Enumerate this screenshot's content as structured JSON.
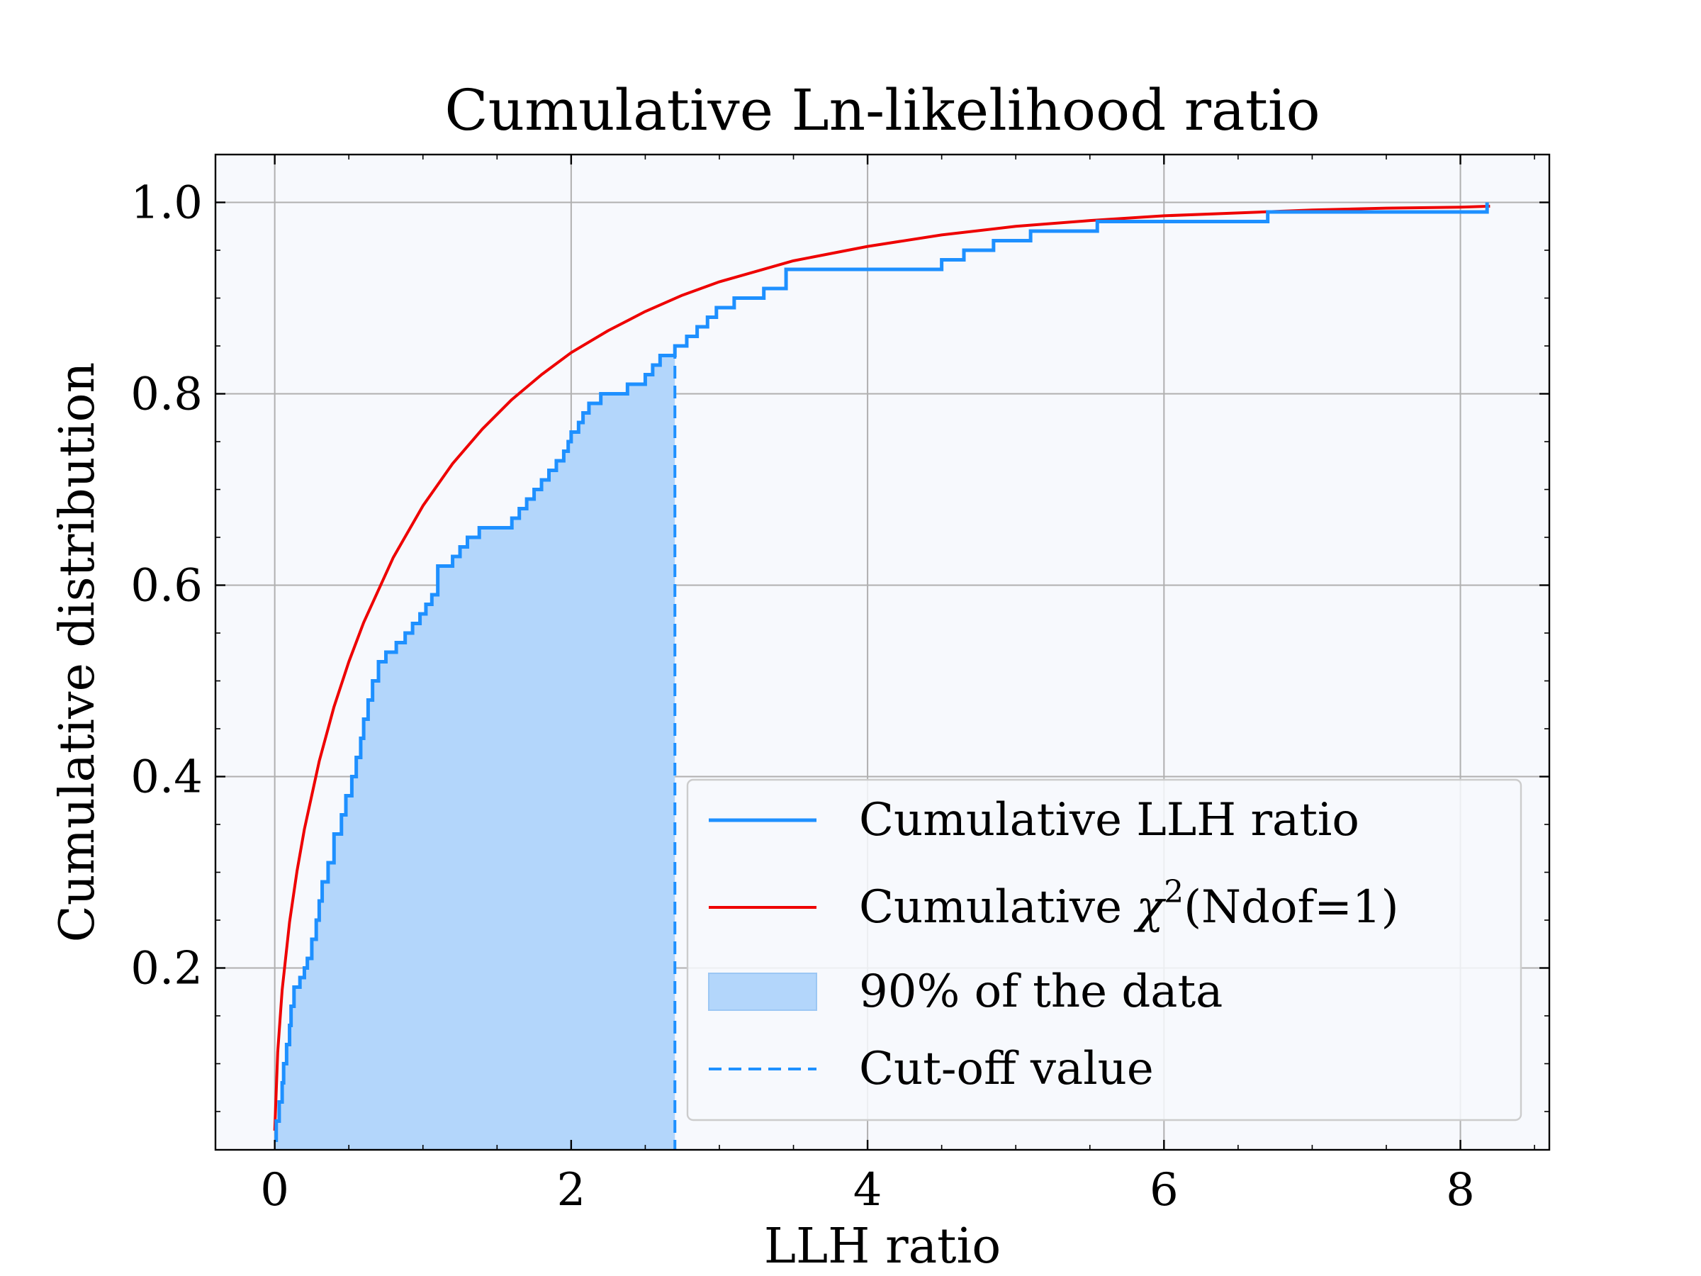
{
  "chart_data": {
    "type": "line",
    "title": "Cumulative Ln-likelihood ratio",
    "xlabel": "LLH ratio",
    "ylabel": "Cumulative distribution",
    "xlim": [
      -0.4,
      8.6
    ],
    "ylim": [
      0.01,
      1.05
    ],
    "x_ticks": [
      0,
      2,
      4,
      6,
      8
    ],
    "x_tick_labels": [
      "0",
      "2",
      "4",
      "6",
      "8"
    ],
    "y_ticks": [
      0.2,
      0.4,
      0.6,
      0.8,
      1.0
    ],
    "y_tick_labels": [
      "0.2",
      "0.4",
      "0.6",
      "0.8",
      "1.0"
    ],
    "grid": true,
    "legend_position": "lower-right",
    "cutoff_x": 2.7,
    "legend": {
      "llh": "Cumulative LLH ratio",
      "chi2_prefix": "Cumulative ",
      "chi2_symbol": "χ",
      "chi2_sup": "2",
      "chi2_suffix": "(Ndof=1)",
      "fill": "90% of the data",
      "cutoff": "Cut-off value"
    },
    "colors": {
      "llh": "#1e90ff",
      "chi2": "#ee0000",
      "fill": "#b3d6fb",
      "background": "#f7f9fd",
      "grid": "#b0b0b0"
    },
    "series": [
      {
        "name": "Cumulative LLH ratio",
        "kind": "step",
        "points": [
          [
            0.0,
            0.02
          ],
          [
            0.01,
            0.04
          ],
          [
            0.03,
            0.06
          ],
          [
            0.05,
            0.08
          ],
          [
            0.06,
            0.1
          ],
          [
            0.08,
            0.12
          ],
          [
            0.1,
            0.14
          ],
          [
            0.11,
            0.16
          ],
          [
            0.13,
            0.18
          ],
          [
            0.17,
            0.19
          ],
          [
            0.2,
            0.2
          ],
          [
            0.22,
            0.21
          ],
          [
            0.25,
            0.23
          ],
          [
            0.28,
            0.25
          ],
          [
            0.3,
            0.27
          ],
          [
            0.32,
            0.29
          ],
          [
            0.36,
            0.31
          ],
          [
            0.4,
            0.34
          ],
          [
            0.45,
            0.36
          ],
          [
            0.48,
            0.38
          ],
          [
            0.52,
            0.4
          ],
          [
            0.55,
            0.42
          ],
          [
            0.58,
            0.44
          ],
          [
            0.6,
            0.46
          ],
          [
            0.63,
            0.48
          ],
          [
            0.66,
            0.5
          ],
          [
            0.7,
            0.52
          ],
          [
            0.75,
            0.53
          ],
          [
            0.82,
            0.54
          ],
          [
            0.88,
            0.55
          ],
          [
            0.93,
            0.56
          ],
          [
            0.98,
            0.57
          ],
          [
            1.02,
            0.58
          ],
          [
            1.06,
            0.59
          ],
          [
            1.1,
            0.62
          ],
          [
            1.2,
            0.63
          ],
          [
            1.25,
            0.64
          ],
          [
            1.3,
            0.65
          ],
          [
            1.38,
            0.66
          ],
          [
            1.6,
            0.67
          ],
          [
            1.65,
            0.68
          ],
          [
            1.7,
            0.69
          ],
          [
            1.75,
            0.7
          ],
          [
            1.8,
            0.71
          ],
          [
            1.85,
            0.72
          ],
          [
            1.9,
            0.73
          ],
          [
            1.95,
            0.74
          ],
          [
            1.98,
            0.75
          ],
          [
            2.0,
            0.76
          ],
          [
            2.05,
            0.77
          ],
          [
            2.08,
            0.78
          ],
          [
            2.12,
            0.79
          ],
          [
            2.2,
            0.8
          ],
          [
            2.38,
            0.81
          ],
          [
            2.5,
            0.82
          ],
          [
            2.55,
            0.83
          ],
          [
            2.6,
            0.84
          ],
          [
            2.7,
            0.85
          ],
          [
            2.78,
            0.86
          ],
          [
            2.85,
            0.87
          ],
          [
            2.92,
            0.88
          ],
          [
            2.98,
            0.89
          ],
          [
            3.1,
            0.9
          ],
          [
            3.3,
            0.91
          ],
          [
            3.45,
            0.93
          ],
          [
            4.5,
            0.94
          ],
          [
            4.65,
            0.95
          ],
          [
            4.85,
            0.96
          ],
          [
            5.1,
            0.97
          ],
          [
            5.55,
            0.98
          ],
          [
            6.7,
            0.99
          ],
          [
            8.18,
            1.0
          ]
        ]
      },
      {
        "name": "Cumulative χ2(Ndof=1)",
        "kind": "curve",
        "points": [
          [
            0.0,
            0.03
          ],
          [
            0.02,
            0.112
          ],
          [
            0.05,
            0.177
          ],
          [
            0.1,
            0.248
          ],
          [
            0.15,
            0.301
          ],
          [
            0.2,
            0.345
          ],
          [
            0.3,
            0.416
          ],
          [
            0.4,
            0.473
          ],
          [
            0.5,
            0.52
          ],
          [
            0.6,
            0.561
          ],
          [
            0.8,
            0.629
          ],
          [
            1.0,
            0.683
          ],
          [
            1.2,
            0.727
          ],
          [
            1.4,
            0.763
          ],
          [
            1.6,
            0.794
          ],
          [
            1.8,
            0.82
          ],
          [
            2.0,
            0.843
          ],
          [
            2.25,
            0.866
          ],
          [
            2.5,
            0.886
          ],
          [
            2.75,
            0.903
          ],
          [
            3.0,
            0.917
          ],
          [
            3.5,
            0.939
          ],
          [
            4.0,
            0.954
          ],
          [
            4.5,
            0.966
          ],
          [
            5.0,
            0.975
          ],
          [
            5.5,
            0.981
          ],
          [
            6.0,
            0.986
          ],
          [
            6.5,
            0.989
          ],
          [
            7.0,
            0.992
          ],
          [
            7.5,
            0.994
          ],
          [
            8.0,
            0.995
          ],
          [
            8.2,
            0.996
          ]
        ]
      }
    ]
  }
}
